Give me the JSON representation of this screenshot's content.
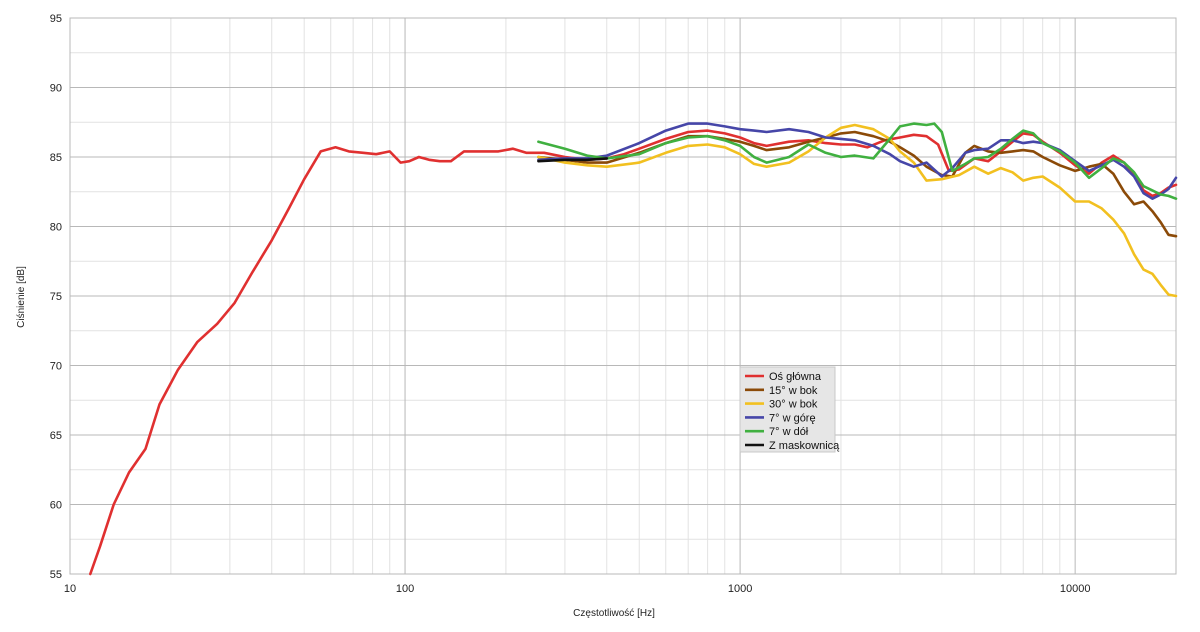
{
  "chart_data": {
    "type": "line",
    "xlabel": "Częstotliwość [Hz]",
    "ylabel": "Ciśnienie [dB]",
    "xscale": "log",
    "xlim": [
      10,
      20000
    ],
    "ylim": [
      55,
      95
    ],
    "xticks": [
      10,
      100,
      1000,
      10000
    ],
    "xtick_labels": [
      "10",
      "100",
      "1000",
      "10000"
    ],
    "yticks": [
      55,
      60,
      65,
      70,
      75,
      80,
      85,
      90,
      95
    ],
    "ytick_labels": [
      "55",
      "60",
      "65",
      "70",
      "75",
      "80",
      "85",
      "90",
      "95"
    ],
    "grid": true,
    "legend_position": "center-right",
    "series": [
      {
        "name": "Oś główna",
        "color": "#e03030",
        "points": [
          [
            11.5,
            55.0
          ],
          [
            12.3,
            57.0
          ],
          [
            13.5,
            60.0
          ],
          [
            15.0,
            62.3
          ],
          [
            16.8,
            64.0
          ],
          [
            18.5,
            67.2
          ],
          [
            21.0,
            69.7
          ],
          [
            24.0,
            71.7
          ],
          [
            27.5,
            73.0
          ],
          [
            31.0,
            74.5
          ],
          [
            35.0,
            76.7
          ],
          [
            40.0,
            79.0
          ],
          [
            45.0,
            81.3
          ],
          [
            50.0,
            83.4
          ],
          [
            56.0,
            85.4
          ],
          [
            62.0,
            85.7
          ],
          [
            68.0,
            85.4
          ],
          [
            75.0,
            85.3
          ],
          [
            82.0,
            85.2
          ],
          [
            90.0,
            85.4
          ],
          [
            97.0,
            84.6
          ],
          [
            103.0,
            84.7
          ],
          [
            110.0,
            85.0
          ],
          [
            118.0,
            84.8
          ],
          [
            127.0,
            84.7
          ],
          [
            137.0,
            84.7
          ],
          [
            150.0,
            85.4
          ],
          [
            170.0,
            85.4
          ],
          [
            190.0,
            85.4
          ],
          [
            210.0,
            85.6
          ],
          [
            230.0,
            85.3
          ],
          [
            260.0,
            85.3
          ],
          [
            300.0,
            85.0
          ],
          [
            350.0,
            84.8
          ],
          [
            400.0,
            84.9
          ],
          [
            450.0,
            85.2
          ],
          [
            500.0,
            85.6
          ],
          [
            600.0,
            86.3
          ],
          [
            700.0,
            86.8
          ],
          [
            800.0,
            86.9
          ],
          [
            900.0,
            86.7
          ],
          [
            1000.0,
            86.4
          ],
          [
            1100.0,
            86.0
          ],
          [
            1200.0,
            85.8
          ],
          [
            1400.0,
            86.1
          ],
          [
            1600.0,
            86.2
          ],
          [
            1800.0,
            86.0
          ],
          [
            2000.0,
            85.9
          ],
          [
            2200.0,
            85.9
          ],
          [
            2400.0,
            85.7
          ],
          [
            2700.0,
            86.2
          ],
          [
            3000.0,
            86.4
          ],
          [
            3300.0,
            86.6
          ],
          [
            3600.0,
            86.5
          ],
          [
            3900.0,
            85.9
          ],
          [
            4200.0,
            84.0
          ],
          [
            4500.0,
            84.1
          ],
          [
            5000.0,
            84.9
          ],
          [
            5500.0,
            84.7
          ],
          [
            6000.0,
            85.4
          ],
          [
            6500.0,
            86.1
          ],
          [
            7000.0,
            86.7
          ],
          [
            7500.0,
            86.6
          ],
          [
            8000.0,
            86.1
          ],
          [
            9000.0,
            85.3
          ],
          [
            10000.0,
            84.4
          ],
          [
            11000.0,
            83.8
          ],
          [
            12000.0,
            84.6
          ],
          [
            13000.0,
            85.1
          ],
          [
            14000.0,
            84.6
          ],
          [
            15000.0,
            83.7
          ],
          [
            16000,
            82.6
          ],
          [
            17000,
            82.2
          ],
          [
            18000,
            82.4
          ],
          [
            19000,
            82.8
          ],
          [
            20000,
            83.0
          ]
        ]
      },
      {
        "name": "15° w bok",
        "color": "#8b4a08",
        "points": [
          [
            250,
            85.0
          ],
          [
            300,
            84.8
          ],
          [
            350,
            84.6
          ],
          [
            400,
            84.6
          ],
          [
            500,
            85.3
          ],
          [
            600,
            86.0
          ],
          [
            700,
            86.5
          ],
          [
            800,
            86.5
          ],
          [
            900,
            86.3
          ],
          [
            1000,
            86.1
          ],
          [
            1100,
            85.8
          ],
          [
            1200,
            85.5
          ],
          [
            1400,
            85.7
          ],
          [
            1600,
            86.1
          ],
          [
            1800,
            86.4
          ],
          [
            2000,
            86.7
          ],
          [
            2200,
            86.8
          ],
          [
            2500,
            86.5
          ],
          [
            2800,
            86.1
          ],
          [
            3000,
            85.7
          ],
          [
            3300,
            85.1
          ],
          [
            3600,
            84.3
          ],
          [
            4000,
            83.7
          ],
          [
            4300,
            83.6
          ],
          [
            4700,
            85.3
          ],
          [
            5000,
            85.8
          ],
          [
            5500,
            85.4
          ],
          [
            6000,
            85.3
          ],
          [
            6500,
            85.4
          ],
          [
            7000,
            85.5
          ],
          [
            7500,
            85.4
          ],
          [
            8000,
            85.0
          ],
          [
            9000,
            84.4
          ],
          [
            10000,
            84.0
          ],
          [
            11000,
            84.3
          ],
          [
            12000,
            84.5
          ],
          [
            13000,
            83.8
          ],
          [
            14000,
            82.5
          ],
          [
            15000,
            81.6
          ],
          [
            16000,
            81.8
          ],
          [
            17000,
            81.1
          ],
          [
            18000,
            80.3
          ],
          [
            19000,
            79.4
          ],
          [
            20000,
            79.3
          ]
        ]
      },
      {
        "name": "30° w bok",
        "color": "#f2c020",
        "points": [
          [
            250,
            85.0
          ],
          [
            300,
            84.6
          ],
          [
            350,
            84.4
          ],
          [
            400,
            84.3
          ],
          [
            500,
            84.6
          ],
          [
            600,
            85.3
          ],
          [
            700,
            85.8
          ],
          [
            800,
            85.9
          ],
          [
            900,
            85.7
          ],
          [
            1000,
            85.2
          ],
          [
            1100,
            84.5
          ],
          [
            1200,
            84.3
          ],
          [
            1400,
            84.6
          ],
          [
            1600,
            85.4
          ],
          [
            1800,
            86.4
          ],
          [
            2000,
            87.1
          ],
          [
            2200,
            87.3
          ],
          [
            2500,
            87.0
          ],
          [
            2800,
            86.3
          ],
          [
            3000,
            85.4
          ],
          [
            3300,
            84.6
          ],
          [
            3600,
            83.3
          ],
          [
            4000,
            83.4
          ],
          [
            4500,
            83.7
          ],
          [
            5000,
            84.3
          ],
          [
            5500,
            83.8
          ],
          [
            6000,
            84.2
          ],
          [
            6500,
            83.9
          ],
          [
            7000,
            83.3
          ],
          [
            7500,
            83.5
          ],
          [
            8000,
            83.6
          ],
          [
            9000,
            82.8
          ],
          [
            10000,
            81.8
          ],
          [
            11000,
            81.8
          ],
          [
            12000,
            81.3
          ],
          [
            13000,
            80.5
          ],
          [
            14000,
            79.5
          ],
          [
            15000,
            78.0
          ],
          [
            16000,
            76.9
          ],
          [
            17000,
            76.6
          ],
          [
            18000,
            75.8
          ],
          [
            19000,
            75.1
          ],
          [
            20000,
            75.0
          ]
        ]
      },
      {
        "name": "7° w górę",
        "color": "#4646a8",
        "points": [
          [
            250,
            84.8
          ],
          [
            300,
            84.9
          ],
          [
            350,
            84.9
          ],
          [
            400,
            85.1
          ],
          [
            500,
            86.0
          ],
          [
            600,
            86.9
          ],
          [
            700,
            87.4
          ],
          [
            800,
            87.4
          ],
          [
            900,
            87.2
          ],
          [
            1000,
            87.0
          ],
          [
            1100,
            86.9
          ],
          [
            1200,
            86.8
          ],
          [
            1400,
            87.0
          ],
          [
            1600,
            86.8
          ],
          [
            1800,
            86.4
          ],
          [
            2000,
            86.3
          ],
          [
            2200,
            86.2
          ],
          [
            2500,
            85.8
          ],
          [
            2800,
            85.2
          ],
          [
            3000,
            84.7
          ],
          [
            3300,
            84.3
          ],
          [
            3600,
            84.6
          ],
          [
            4000,
            83.6
          ],
          [
            4300,
            84.2
          ],
          [
            4700,
            85.3
          ],
          [
            5000,
            85.5
          ],
          [
            5500,
            85.6
          ],
          [
            6000,
            86.2
          ],
          [
            6500,
            86.2
          ],
          [
            7000,
            86.0
          ],
          [
            7500,
            86.1
          ],
          [
            8000,
            86.0
          ],
          [
            9000,
            85.5
          ],
          [
            10000,
            84.7
          ],
          [
            11000,
            84.0
          ],
          [
            12000,
            84.4
          ],
          [
            13000,
            84.8
          ],
          [
            14000,
            84.3
          ],
          [
            15000,
            83.6
          ],
          [
            16000,
            82.4
          ],
          [
            17000,
            82.0
          ],
          [
            18000,
            82.3
          ],
          [
            19000,
            82.7
          ],
          [
            20000,
            83.5
          ]
        ]
      },
      {
        "name": "7° w dół",
        "color": "#40b040",
        "points": [
          [
            250,
            86.1
          ],
          [
            300,
            85.6
          ],
          [
            350,
            85.1
          ],
          [
            400,
            84.9
          ],
          [
            500,
            85.2
          ],
          [
            600,
            86.0
          ],
          [
            700,
            86.4
          ],
          [
            800,
            86.5
          ],
          [
            900,
            86.2
          ],
          [
            1000,
            85.8
          ],
          [
            1100,
            85.0
          ],
          [
            1200,
            84.6
          ],
          [
            1400,
            85.0
          ],
          [
            1600,
            85.9
          ],
          [
            1800,
            85.3
          ],
          [
            2000,
            85.0
          ],
          [
            2200,
            85.1
          ],
          [
            2500,
            84.9
          ],
          [
            2800,
            86.3
          ],
          [
            3000,
            87.2
          ],
          [
            3300,
            87.4
          ],
          [
            3600,
            87.3
          ],
          [
            3800,
            87.4
          ],
          [
            4000,
            86.8
          ],
          [
            4300,
            84.0
          ],
          [
            4700,
            84.5
          ],
          [
            5000,
            84.9
          ],
          [
            5500,
            85.0
          ],
          [
            6000,
            85.6
          ],
          [
            6500,
            86.3
          ],
          [
            7000,
            86.9
          ],
          [
            7500,
            86.7
          ],
          [
            8000,
            86.0
          ],
          [
            9000,
            85.4
          ],
          [
            10000,
            84.6
          ],
          [
            11000,
            83.5
          ],
          [
            12000,
            84.2
          ],
          [
            13000,
            84.9
          ],
          [
            14000,
            84.6
          ],
          [
            15000,
            83.9
          ],
          [
            16000,
            82.9
          ],
          [
            17000,
            82.6
          ],
          [
            18000,
            82.3
          ],
          [
            19000,
            82.2
          ],
          [
            20000,
            82.0
          ]
        ]
      },
      {
        "name": "Z maskownicą",
        "color": "#111111",
        "points": [
          [
            250,
            84.7
          ],
          [
            300,
            84.8
          ],
          [
            350,
            84.8
          ],
          [
            400,
            84.9
          ]
        ]
      }
    ]
  }
}
